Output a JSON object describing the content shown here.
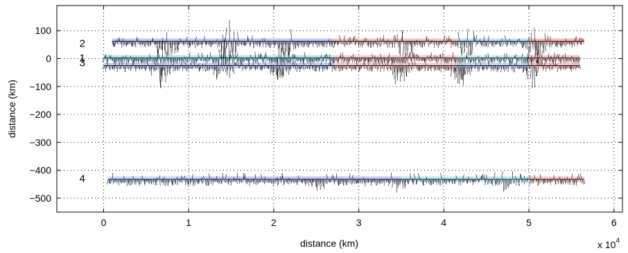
{
  "chart_data": {
    "type": "line",
    "xlabel": "distance (km)",
    "ylabel": "distance (km)",
    "x_multiplier": "x 10",
    "x_multiplier_exp": "4",
    "xlim": [
      -0.55,
      6.1
    ],
    "ylim": [
      -550,
      190
    ],
    "grid": true,
    "x_ticks": [
      0,
      1,
      2,
      3,
      4,
      5,
      6
    ],
    "y_ticks": [
      100,
      0,
      -100,
      -200,
      -300,
      -400,
      -500
    ],
    "x_tick_labels": [
      "0",
      "1",
      "2",
      "3",
      "4",
      "5",
      "6"
    ],
    "y_tick_labels": [
      "100",
      "0",
      "−100",
      "−200",
      "−300",
      "−400",
      "−500"
    ],
    "series": [
      {
        "name": "2",
        "label_x": -0.25,
        "label_y": 55,
        "y": 62,
        "x_start": 0.1,
        "x_end": 5.65,
        "segments": [
          {
            "x0": 0.1,
            "x1": 2.7,
            "color": "#b8bef0"
          },
          {
            "x0": 2.7,
            "x1": 4.15,
            "color": "#f4b8b8"
          },
          {
            "x0": 4.15,
            "x1": 5.0,
            "color": "#b8d8f4"
          },
          {
            "x0": 5.0,
            "x1": 5.65,
            "color": "#f6b0b0"
          }
        ]
      },
      {
        "name": "1",
        "label_x": -0.25,
        "label_y": 3,
        "y": 2,
        "x_start": 0.0,
        "x_end": 5.6,
        "segments": [
          {
            "x0": 0.0,
            "x1": 2.7,
            "color": "#a8e0f0"
          },
          {
            "x0": 2.7,
            "x1": 4.15,
            "color": "#f4c0c0"
          },
          {
            "x0": 4.15,
            "x1": 5.0,
            "color": "#c0e8f0"
          },
          {
            "x0": 5.0,
            "x1": 5.6,
            "color": "#f6b8b8"
          }
        ]
      },
      {
        "name": "3",
        "label_x": -0.25,
        "label_y": -15,
        "y": -25,
        "x_start": 0.0,
        "x_end": 5.6,
        "segments": [
          {
            "x0": 0.0,
            "x1": 2.7,
            "color": "#b8c4f0"
          },
          {
            "x0": 2.7,
            "x1": 4.15,
            "color": "#f4c0c8"
          },
          {
            "x0": 4.15,
            "x1": 5.0,
            "color": "#b8d0f0"
          },
          {
            "x0": 5.0,
            "x1": 5.6,
            "color": "#f6b8b8"
          }
        ]
      },
      {
        "name": "4",
        "label_x": -0.25,
        "label_y": -430,
        "y": -432,
        "x_start": 0.05,
        "x_end": 5.65,
        "segments": [
          {
            "x0": 0.05,
            "x1": 1.2,
            "color": "#b8d0f4"
          },
          {
            "x0": 1.2,
            "x1": 3.5,
            "color": "#b8c0f0"
          },
          {
            "x0": 3.5,
            "x1": 5.0,
            "color": "#b8e0f0"
          },
          {
            "x0": 5.0,
            "x1": 5.65,
            "color": "#f6c0c0"
          }
        ]
      }
    ]
  }
}
